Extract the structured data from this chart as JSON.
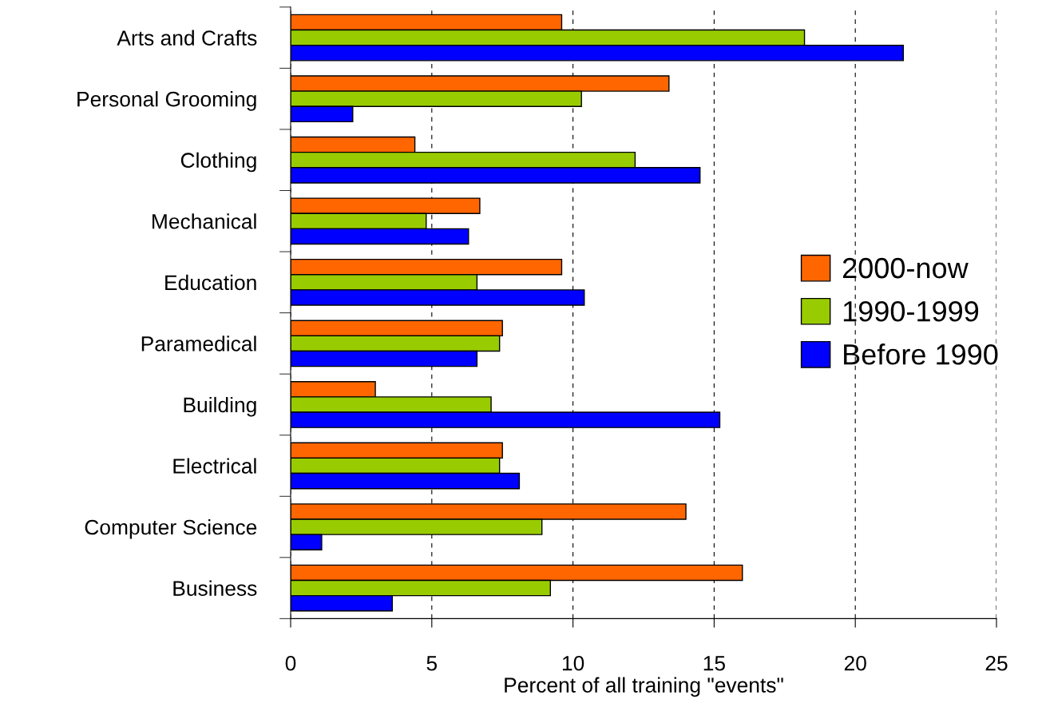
{
  "chart_data": {
    "type": "bar",
    "orientation": "horizontal",
    "xlabel": "Percent of all training \"events\"",
    "categories": [
      "Arts and Crafts",
      "Personal Grooming",
      "Clothing",
      "Mechanical",
      "Education",
      "Paramedical",
      "Building",
      "Electrical",
      "Computer Science",
      "Business"
    ],
    "series": [
      {
        "name": "2000-now",
        "color": "#ff6600",
        "values": [
          9.6,
          13.4,
          4.4,
          6.7,
          9.6,
          7.5,
          3.0,
          7.5,
          14.0,
          16.0
        ]
      },
      {
        "name": "1990-1999",
        "color": "#99cc00",
        "values": [
          18.2,
          10.3,
          12.2,
          4.8,
          6.6,
          7.4,
          7.1,
          7.4,
          8.9,
          9.2
        ]
      },
      {
        "name": "Before 1990",
        "color": "#0000ff",
        "values": [
          21.7,
          2.2,
          14.5,
          6.3,
          10.4,
          6.6,
          15.2,
          8.1,
          1.1,
          3.6
        ]
      }
    ],
    "xlim": [
      0,
      25
    ],
    "xticks": [
      0,
      5,
      10,
      15,
      20,
      25
    ],
    "grid": "x",
    "legend": "right"
  }
}
